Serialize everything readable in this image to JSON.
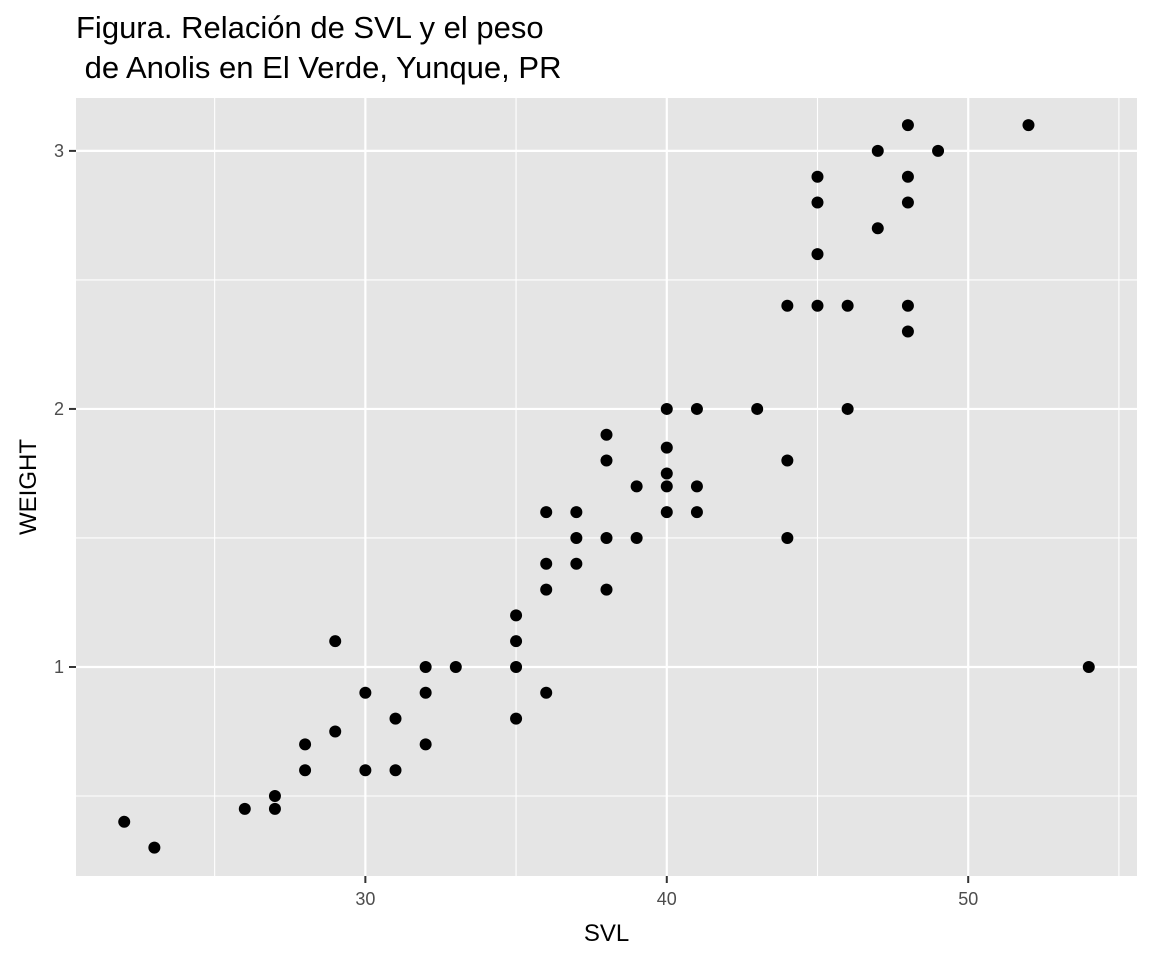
{
  "chart_data": {
    "type": "scatter",
    "title_lines": [
      "Figura. Relación de SVL y el peso",
      " de Anolis en El Verde, Yunque, PR"
    ],
    "xlabel": "SVL",
    "ylabel": "WEIGHT",
    "xlim": [
      20.4,
      55.6
    ],
    "ylim": [
      0.19,
      3.205
    ],
    "x_ticks": [
      30,
      40,
      50
    ],
    "x_tick_labels": [
      "30",
      "40",
      "50"
    ],
    "x_minor_ticks": [
      25,
      35,
      45,
      55
    ],
    "y_ticks": [
      1,
      2,
      3
    ],
    "y_tick_labels": [
      "1",
      "2",
      "3"
    ],
    "y_minor_ticks": [
      0.5,
      1.5,
      2.5
    ],
    "grid": true,
    "colors": {
      "panel": "#e5e5e5",
      "grid": "#ffffff",
      "point": "#000000"
    },
    "points": [
      {
        "x": 22,
        "y": 0.4
      },
      {
        "x": 23,
        "y": 0.3
      },
      {
        "x": 26,
        "y": 0.45
      },
      {
        "x": 27,
        "y": 0.45
      },
      {
        "x": 27,
        "y": 0.5
      },
      {
        "x": 28,
        "y": 0.6
      },
      {
        "x": 28,
        "y": 0.7
      },
      {
        "x": 29,
        "y": 0.75
      },
      {
        "x": 29,
        "y": 1.1
      },
      {
        "x": 30,
        "y": 0.6
      },
      {
        "x": 30,
        "y": 0.9
      },
      {
        "x": 31,
        "y": 0.6
      },
      {
        "x": 31,
        "y": 0.8
      },
      {
        "x": 32,
        "y": 0.7
      },
      {
        "x": 32,
        "y": 0.9
      },
      {
        "x": 32,
        "y": 1.0
      },
      {
        "x": 33,
        "y": 1.0
      },
      {
        "x": 35,
        "y": 0.8
      },
      {
        "x": 35,
        "y": 1.0
      },
      {
        "x": 35,
        "y": 1.1
      },
      {
        "x": 35,
        "y": 1.2
      },
      {
        "x": 36,
        "y": 0.9
      },
      {
        "x": 36,
        "y": 1.3
      },
      {
        "x": 36,
        "y": 1.4
      },
      {
        "x": 36,
        "y": 1.6
      },
      {
        "x": 37,
        "y": 1.4
      },
      {
        "x": 37,
        "y": 1.5
      },
      {
        "x": 37,
        "y": 1.6
      },
      {
        "x": 38,
        "y": 1.3
      },
      {
        "x": 38,
        "y": 1.5
      },
      {
        "x": 38,
        "y": 1.8
      },
      {
        "x": 38,
        "y": 1.9
      },
      {
        "x": 39,
        "y": 1.5
      },
      {
        "x": 39,
        "y": 1.7
      },
      {
        "x": 40,
        "y": 1.6
      },
      {
        "x": 40,
        "y": 1.7
      },
      {
        "x": 40,
        "y": 1.75
      },
      {
        "x": 40,
        "y": 1.85
      },
      {
        "x": 40,
        "y": 2.0
      },
      {
        "x": 41,
        "y": 1.6
      },
      {
        "x": 41,
        "y": 1.7
      },
      {
        "x": 41,
        "y": 2.0
      },
      {
        "x": 43,
        "y": 2.0
      },
      {
        "x": 44,
        "y": 1.5
      },
      {
        "x": 44,
        "y": 1.8
      },
      {
        "x": 44,
        "y": 2.4
      },
      {
        "x": 45,
        "y": 2.4
      },
      {
        "x": 45,
        "y": 2.6
      },
      {
        "x": 45,
        "y": 2.8
      },
      {
        "x": 45,
        "y": 2.9
      },
      {
        "x": 46,
        "y": 2.0
      },
      {
        "x": 46,
        "y": 2.4
      },
      {
        "x": 47,
        "y": 2.7
      },
      {
        "x": 47,
        "y": 3.0
      },
      {
        "x": 48,
        "y": 2.3
      },
      {
        "x": 48,
        "y": 2.4
      },
      {
        "x": 48,
        "y": 2.8
      },
      {
        "x": 48,
        "y": 2.9
      },
      {
        "x": 48,
        "y": 3.1
      },
      {
        "x": 49,
        "y": 3.0
      },
      {
        "x": 52,
        "y": 3.1
      },
      {
        "x": 54,
        "y": 1.0
      }
    ]
  }
}
